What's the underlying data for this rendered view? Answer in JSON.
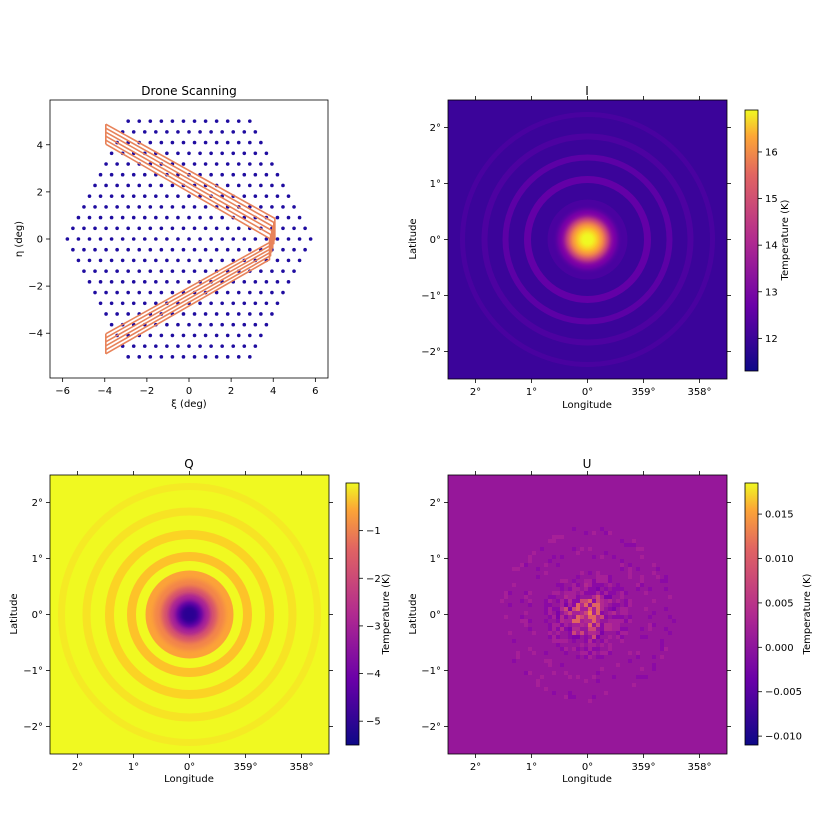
{
  "chart_data": [
    {
      "type": "scatter",
      "title": "Drone Scanning",
      "xlabel": "ξ (deg)",
      "ylabel": "η (deg)",
      "xlim": [
        -6.6,
        6.6
      ],
      "ylim": [
        -5.9,
        5.9
      ],
      "xticks": [
        "−6",
        "−4",
        "−2",
        "0",
        "2",
        "4",
        "6"
      ],
      "yticks": [
        "−4",
        "−2",
        "0",
        "2",
        "4"
      ],
      "points": {
        "layout": "hexagonal grid inside a regular hexagon",
        "hex_radius_deg": 5.95,
        "spacing_deg": 0.525,
        "color": "#1f0ca0"
      },
      "scan_path": {
        "color": "#e8835a",
        "passes": 6,
        "vertices": [
          [
            -3.95,
            4.45
          ],
          [
            3.95,
            0.45
          ],
          [
            3.95,
            -0.45
          ],
          [
            -3.95,
            -4.45
          ]
        ],
        "pass_offset_deg": 0.17
      }
    },
    {
      "type": "heatmap",
      "title": "I",
      "xlabel": "Longitude",
      "ylabel": "Latitude",
      "xticks": [
        "2°",
        "1°",
        "0°",
        "359°",
        "358°"
      ],
      "yticks": [
        "2°",
        "1°",
        "0°",
        "−1°",
        "−2°"
      ],
      "colormap": "plasma",
      "colorbar": {
        "label": "Temperature (K)",
        "range": [
          11.3,
          16.9
        ],
        "ticks": [
          "12",
          "13",
          "14",
          "15",
          "16"
        ]
      },
      "peak_value": 16.9,
      "background_value": 11.5
    },
    {
      "type": "heatmap",
      "title": "Q",
      "xlabel": "Longitude",
      "ylabel": "Latitude",
      "xticks": [
        "2°",
        "1°",
        "0°",
        "359°",
        "358°"
      ],
      "yticks": [
        "2°",
        "1°",
        "0°",
        "−1°",
        "−2°"
      ],
      "colormap": "plasma",
      "colorbar": {
        "label": "Temperature (K)",
        "range": [
          -5.5,
          0
        ],
        "ticks": [
          "−1",
          "−2",
          "−3",
          "−4",
          "−5"
        ]
      },
      "center_value": -5.5,
      "background_value": 0
    },
    {
      "type": "heatmap",
      "title": "U",
      "xlabel": "Longitude",
      "ylabel": "Latitude",
      "xticks": [
        "2°",
        "1°",
        "0°",
        "359°",
        "358°"
      ],
      "yticks": [
        "2°",
        "1°",
        "0°",
        "−1°",
        "−2°"
      ],
      "colormap": "plasma",
      "colorbar": {
        "label": "Temperature (K)",
        "range": [
          -0.011,
          0.0185
        ],
        "ticks": [
          "0.015",
          "0.010",
          "0.005",
          "0.000",
          "−0.005",
          "−0.010"
        ]
      },
      "background_value": -0.002
    }
  ]
}
